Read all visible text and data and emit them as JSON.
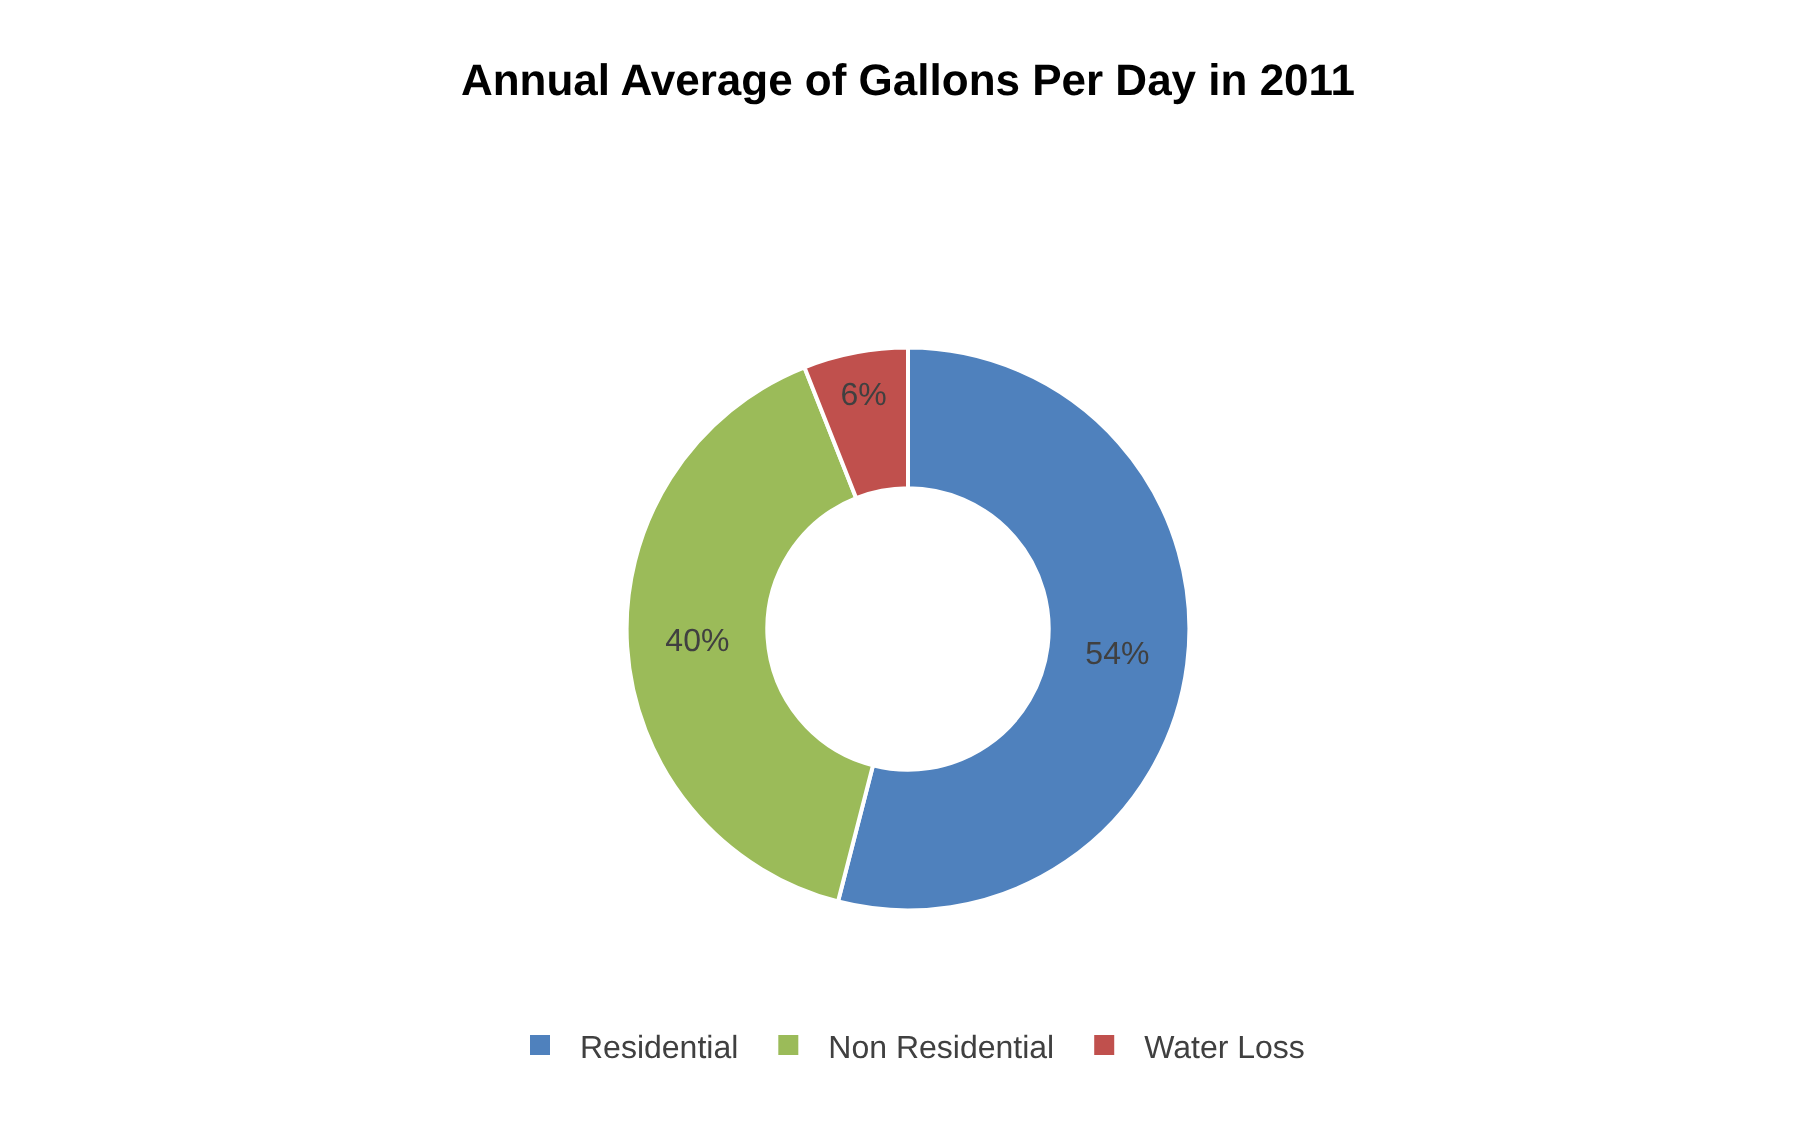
{
  "chart_data": {
    "type": "donut",
    "title": "Annual Average of Gallons Per Day in 2011",
    "categories": [
      "Residential",
      "Non Residential",
      "Water Loss"
    ],
    "values": [
      54,
      40,
      6
    ],
    "colors": [
      "#4f81bd",
      "#9bbb59",
      "#c0504d"
    ],
    "value_labels": [
      "54%",
      "40%",
      "6%"
    ],
    "legend": "bottom"
  }
}
